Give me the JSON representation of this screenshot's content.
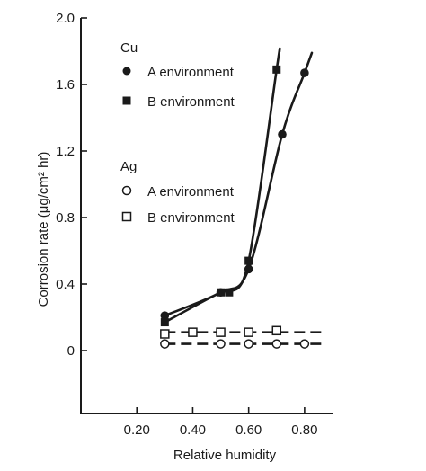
{
  "chart_data": {
    "type": "scatter",
    "xlabel": "Relative humidity",
    "ylabel": "Corrosion rate  (μg/cm² hr)",
    "xlim": [
      0.0,
      0.9
    ],
    "ylim": [
      0,
      2.0
    ],
    "x_ticks": [
      "0.20",
      "0.40",
      "0.60",
      "0.80"
    ],
    "x_tick_values": [
      0.2,
      0.4,
      0.6,
      0.8
    ],
    "y_ticks": [
      "0",
      "0.4",
      "0.8",
      "1.2",
      "1.6",
      "2.0"
    ],
    "y_tick_values": [
      0,
      0.4,
      0.8,
      1.2,
      1.6,
      2.0
    ],
    "legend": {
      "position": "top-left",
      "groups": [
        {
          "title": "Cu",
          "entries": [
            {
              "label": "A environment",
              "marker": "filled-circle"
            },
            {
              "label": "B environment",
              "marker": "filled-square"
            }
          ]
        },
        {
          "title": "Ag",
          "entries": [
            {
              "label": "A environment",
              "marker": "open-circle"
            },
            {
              "label": "B environment",
              "marker": "open-square"
            }
          ]
        }
      ]
    },
    "series": [
      {
        "metal": "Cu",
        "environment": "A environment",
        "marker": "filled-circle",
        "x": [
          0.3,
          0.5,
          0.6,
          0.72,
          0.8
        ],
        "y": [
          0.21,
          0.35,
          0.49,
          1.3,
          1.67
        ],
        "fit": "solid"
      },
      {
        "metal": "Cu",
        "environment": "B environment",
        "marker": "filled-square",
        "x": [
          0.3,
          0.5,
          0.53,
          0.6,
          0.7
        ],
        "y": [
          0.17,
          0.35,
          0.35,
          0.54,
          1.69
        ],
        "fit": "solid"
      },
      {
        "metal": "Ag",
        "environment": "A environment",
        "marker": "open-circle",
        "x": [
          0.3,
          0.5,
          0.6,
          0.7,
          0.8
        ],
        "y": [
          0.04,
          0.04,
          0.04,
          0.04,
          0.04
        ],
        "fit": "dashed"
      },
      {
        "metal": "Ag",
        "environment": "B environment",
        "marker": "open-square",
        "x": [
          0.3,
          0.4,
          0.5,
          0.6,
          0.7
        ],
        "y": [
          0.1,
          0.11,
          0.11,
          0.11,
          0.12
        ],
        "fit": "dashed"
      }
    ],
    "grid": false
  },
  "colors": {
    "ink": "#1a1a1a",
    "background": "#ffffff"
  }
}
